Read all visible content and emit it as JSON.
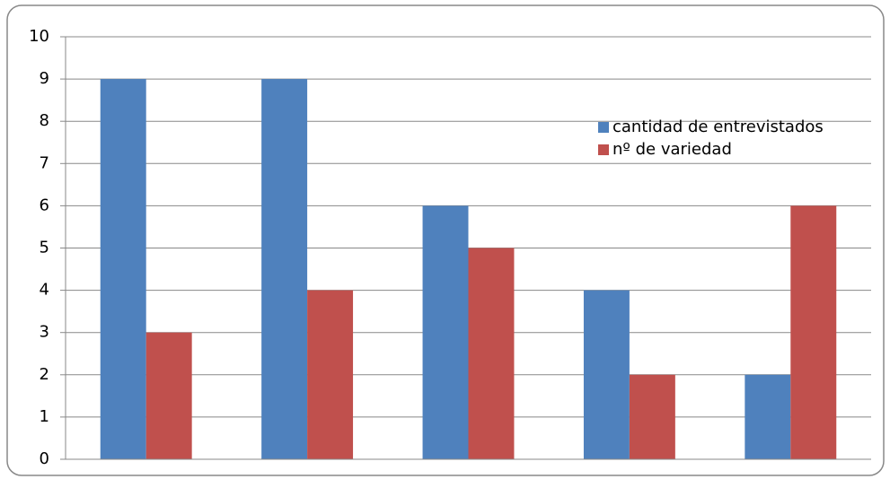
{
  "chart_data": {
    "type": "bar",
    "categories": [
      null,
      null,
      null,
      null,
      null
    ],
    "series": [
      {
        "name": "cantidad de entrevistados",
        "color": "#4f81bd",
        "values": [
          9,
          9,
          6,
          4,
          2
        ]
      },
      {
        "name": "nº de variedad",
        "color": "#c0504d",
        "values": [
          3,
          4,
          5,
          2,
          6
        ]
      }
    ],
    "ylim": [
      0,
      10
    ],
    "yticks": [
      0,
      1,
      2,
      3,
      4,
      5,
      6,
      7,
      8,
      9,
      10
    ],
    "grid": true,
    "legend": "upper right"
  }
}
